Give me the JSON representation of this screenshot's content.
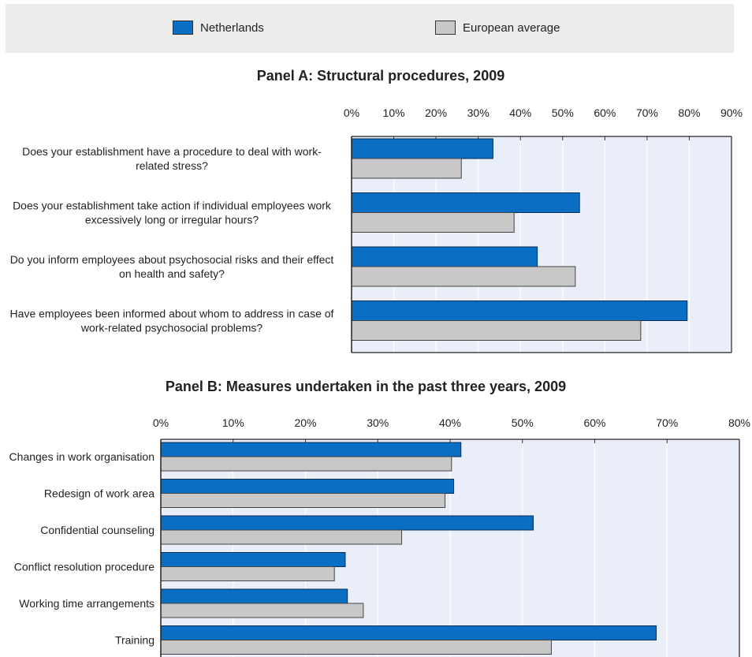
{
  "legend": {
    "items": [
      {
        "label": "Netherlands",
        "color": "#0b6ec5"
      },
      {
        "label": "European average",
        "color": "#c8c8c8"
      }
    ]
  },
  "chart_data": [
    {
      "type": "bar",
      "orientation": "horizontal",
      "title": "Panel A: Structural procedures, 2009",
      "categories": [
        [
          "Does your establishment have a procedure to deal with work-",
          "related stress?"
        ],
        [
          "Does your establishment take action if individual employees work",
          "excessively long or irregular hours?"
        ],
        [
          "Do you inform employees about psychosocial risks and their effect",
          "on health and safety?"
        ],
        [
          "Have employees been informed about whom to address in case of",
          "work-related psychosocial problems?"
        ]
      ],
      "series": [
        {
          "name": "Netherlands",
          "values": [
            33.5,
            54,
            44,
            79.5
          ]
        },
        {
          "name": "European average",
          "values": [
            26,
            38.5,
            53,
            68.5
          ]
        }
      ],
      "xlim": [
        0,
        90
      ],
      "ticks": [
        "0%",
        "10%",
        "20%",
        "30%",
        "40%",
        "50%",
        "60%",
        "70%",
        "80%",
        "90%"
      ],
      "legend": "top"
    },
    {
      "type": "bar",
      "orientation": "horizontal",
      "title": "Panel B: Measures undertaken in the past three years, 2009",
      "categories": [
        [
          "Changes in work organisation"
        ],
        [
          "Redesign of work area"
        ],
        [
          "Confidential counseling"
        ],
        [
          "Conflict resolution procedure"
        ],
        [
          "Working time arrangements"
        ],
        [
          "Training"
        ]
      ],
      "series": [
        {
          "name": "Netherlands",
          "values": [
            41.5,
            40.5,
            51.5,
            25.5,
            25.8,
            68.5
          ]
        },
        {
          "name": "European average",
          "values": [
            40.2,
            39.3,
            33.3,
            24,
            28,
            54
          ]
        }
      ],
      "xlim": [
        0,
        80
      ],
      "ticks": [
        "0%",
        "10%",
        "20%",
        "30%",
        "40%",
        "50%",
        "60%",
        "70%",
        "80%"
      ],
      "legend": "top"
    }
  ]
}
